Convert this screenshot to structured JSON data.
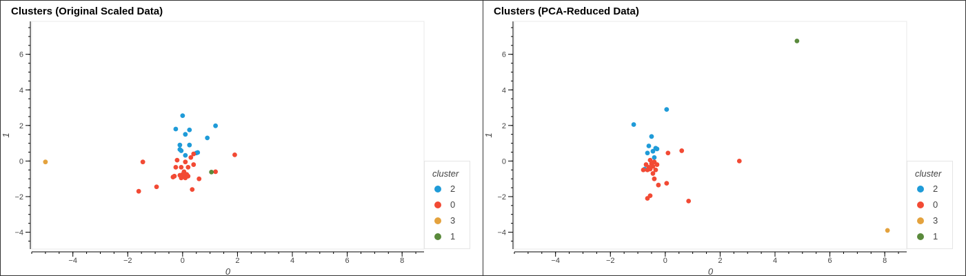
{
  "colors": {
    "2": "#1f9bd8",
    "0": "#f24a34",
    "3": "#e4a23d",
    "1": "#5a8a3c"
  },
  "legend": {
    "title": "cluster",
    "items": [
      {
        "label": "2",
        "key": "2"
      },
      {
        "label": "0",
        "key": "0"
      },
      {
        "label": "3",
        "key": "3"
      },
      {
        "label": "1",
        "key": "1"
      }
    ]
  },
  "chart_data": [
    {
      "type": "scatter",
      "title": "Clusters (Original Scaled Data)",
      "xlabel": "0",
      "ylabel": "1",
      "xlim": [
        -5.5,
        8.8
      ],
      "ylim": [
        -4.95,
        7.85
      ],
      "xticks": [
        -4,
        -2,
        0,
        2,
        4,
        6,
        8
      ],
      "yticks": [
        -4,
        -2,
        0,
        2,
        4,
        6
      ],
      "legend_position": "bottom-right (outside)",
      "series": [
        {
          "name": "2",
          "points": [
            [
              0.0,
              2.55
            ],
            [
              -0.25,
              1.8
            ],
            [
              0.25,
              1.75
            ],
            [
              1.2,
              1.98
            ],
            [
              0.1,
              1.5
            ],
            [
              0.9,
              1.3
            ],
            [
              -0.1,
              0.9
            ],
            [
              0.25,
              0.9
            ],
            [
              -0.1,
              0.65
            ],
            [
              -0.05,
              0.58
            ],
            [
              0.5,
              0.45
            ],
            [
              0.55,
              0.48
            ],
            [
              0.1,
              0.32
            ]
          ]
        },
        {
          "name": "0",
          "points": [
            [
              1.9,
              0.35
            ],
            [
              0.4,
              0.4
            ],
            [
              0.3,
              0.2
            ],
            [
              -1.45,
              -0.05
            ],
            [
              -0.2,
              0.05
            ],
            [
              0.1,
              -0.05
            ],
            [
              0.2,
              -0.35
            ],
            [
              0.4,
              -0.2
            ],
            [
              -0.25,
              -0.35
            ],
            [
              -0.05,
              -0.35
            ],
            [
              0.05,
              -0.6
            ],
            [
              0.0,
              -0.75
            ],
            [
              -0.1,
              -0.8
            ],
            [
              0.15,
              -0.75
            ],
            [
              0.05,
              -0.85
            ],
            [
              0.2,
              -0.85
            ],
            [
              -0.3,
              -0.85
            ],
            [
              -0.35,
              -0.9
            ],
            [
              0.1,
              -0.95
            ],
            [
              -0.05,
              -0.95
            ],
            [
              0.6,
              -1.0
            ],
            [
              1.2,
              -0.6
            ],
            [
              -0.95,
              -1.45
            ],
            [
              0.35,
              -1.6
            ],
            [
              -1.6,
              -1.7
            ]
          ]
        },
        {
          "name": "3",
          "points": [
            [
              -5.0,
              -0.05
            ]
          ]
        },
        {
          "name": "1",
          "points": [
            [
              1.05,
              -0.62
            ]
          ]
        }
      ]
    },
    {
      "type": "scatter",
      "title": "Clusters (PCA-Reduced Data)",
      "xlabel": "0",
      "ylabel": "1",
      "xlim": [
        -5.5,
        8.8
      ],
      "ylim": [
        -4.95,
        7.85
      ],
      "xticks": [
        -4,
        -2,
        0,
        2,
        4,
        6,
        8
      ],
      "yticks": [
        -4,
        -2,
        0,
        2,
        4,
        6
      ],
      "legend_position": "bottom-right (outside)",
      "series": [
        {
          "name": "2",
          "points": [
            [
              0.05,
              2.9
            ],
            [
              -1.15,
              2.05
            ],
            [
              -0.5,
              1.38
            ],
            [
              -0.6,
              0.85
            ],
            [
              -0.35,
              0.72
            ],
            [
              -0.45,
              0.55
            ],
            [
              -0.3,
              0.68
            ],
            [
              -0.65,
              0.45
            ],
            [
              -0.4,
              0.2
            ],
            [
              -0.75,
              -0.45
            ]
          ]
        },
        {
          "name": "0",
          "points": [
            [
              0.6,
              0.58
            ],
            [
              0.1,
              0.45
            ],
            [
              2.7,
              0.0
            ],
            [
              -0.55,
              0.05
            ],
            [
              -0.4,
              -0.05
            ],
            [
              -0.5,
              -0.15
            ],
            [
              -0.7,
              -0.2
            ],
            [
              -0.3,
              -0.2
            ],
            [
              -0.45,
              -0.3
            ],
            [
              -0.6,
              -0.35
            ],
            [
              -0.55,
              -0.45
            ],
            [
              -0.8,
              -0.5
            ],
            [
              -0.65,
              -0.5
            ],
            [
              -0.35,
              -0.5
            ],
            [
              -0.45,
              -0.7
            ],
            [
              -0.4,
              -1.0
            ],
            [
              0.05,
              -1.25
            ],
            [
              -0.25,
              -1.35
            ],
            [
              -0.55,
              -1.95
            ],
            [
              -0.65,
              -2.1
            ],
            [
              0.85,
              -2.25
            ]
          ]
        },
        {
          "name": "3",
          "points": [
            [
              8.1,
              -3.9
            ]
          ]
        },
        {
          "name": "1",
          "points": [
            [
              4.8,
              6.75
            ]
          ]
        }
      ]
    }
  ]
}
